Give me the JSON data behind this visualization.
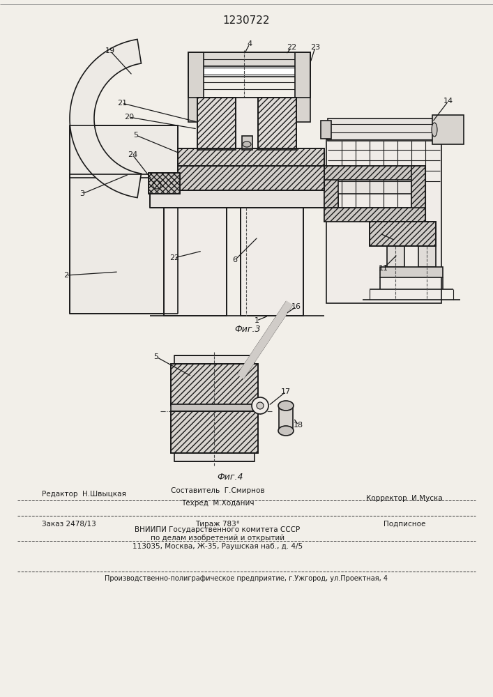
{
  "patent_number": "1230722",
  "fig3_label": "Фиг.3",
  "fig4_label": "Фиг.4",
  "bg_color": "#f2efe9",
  "line_color": "#1a1a1a",
  "footer_line1_left": "Редактор  Н.Швыцкая",
  "footer_line1_center": "Составитель  Г.Смирнов",
  "footer_line2_center": "Техред  М.Ходанич",
  "footer_line2_right": "Корректор  И.Муска",
  "order_left": "Заказ 2478/13",
  "order_center": "Тираж 783°",
  "order_right": "Подписное",
  "vniip1": "ВНИИПИ Государственного комитета СССР",
  "vniip2": "по делам изобретений и открытий",
  "vniip3": "113035, Москва, Ж-35, Раушская наб., д. 4/5",
  "production": "Производственно-полиграфическое предприятие, г.Ужгород, ул.Проектная, 4"
}
